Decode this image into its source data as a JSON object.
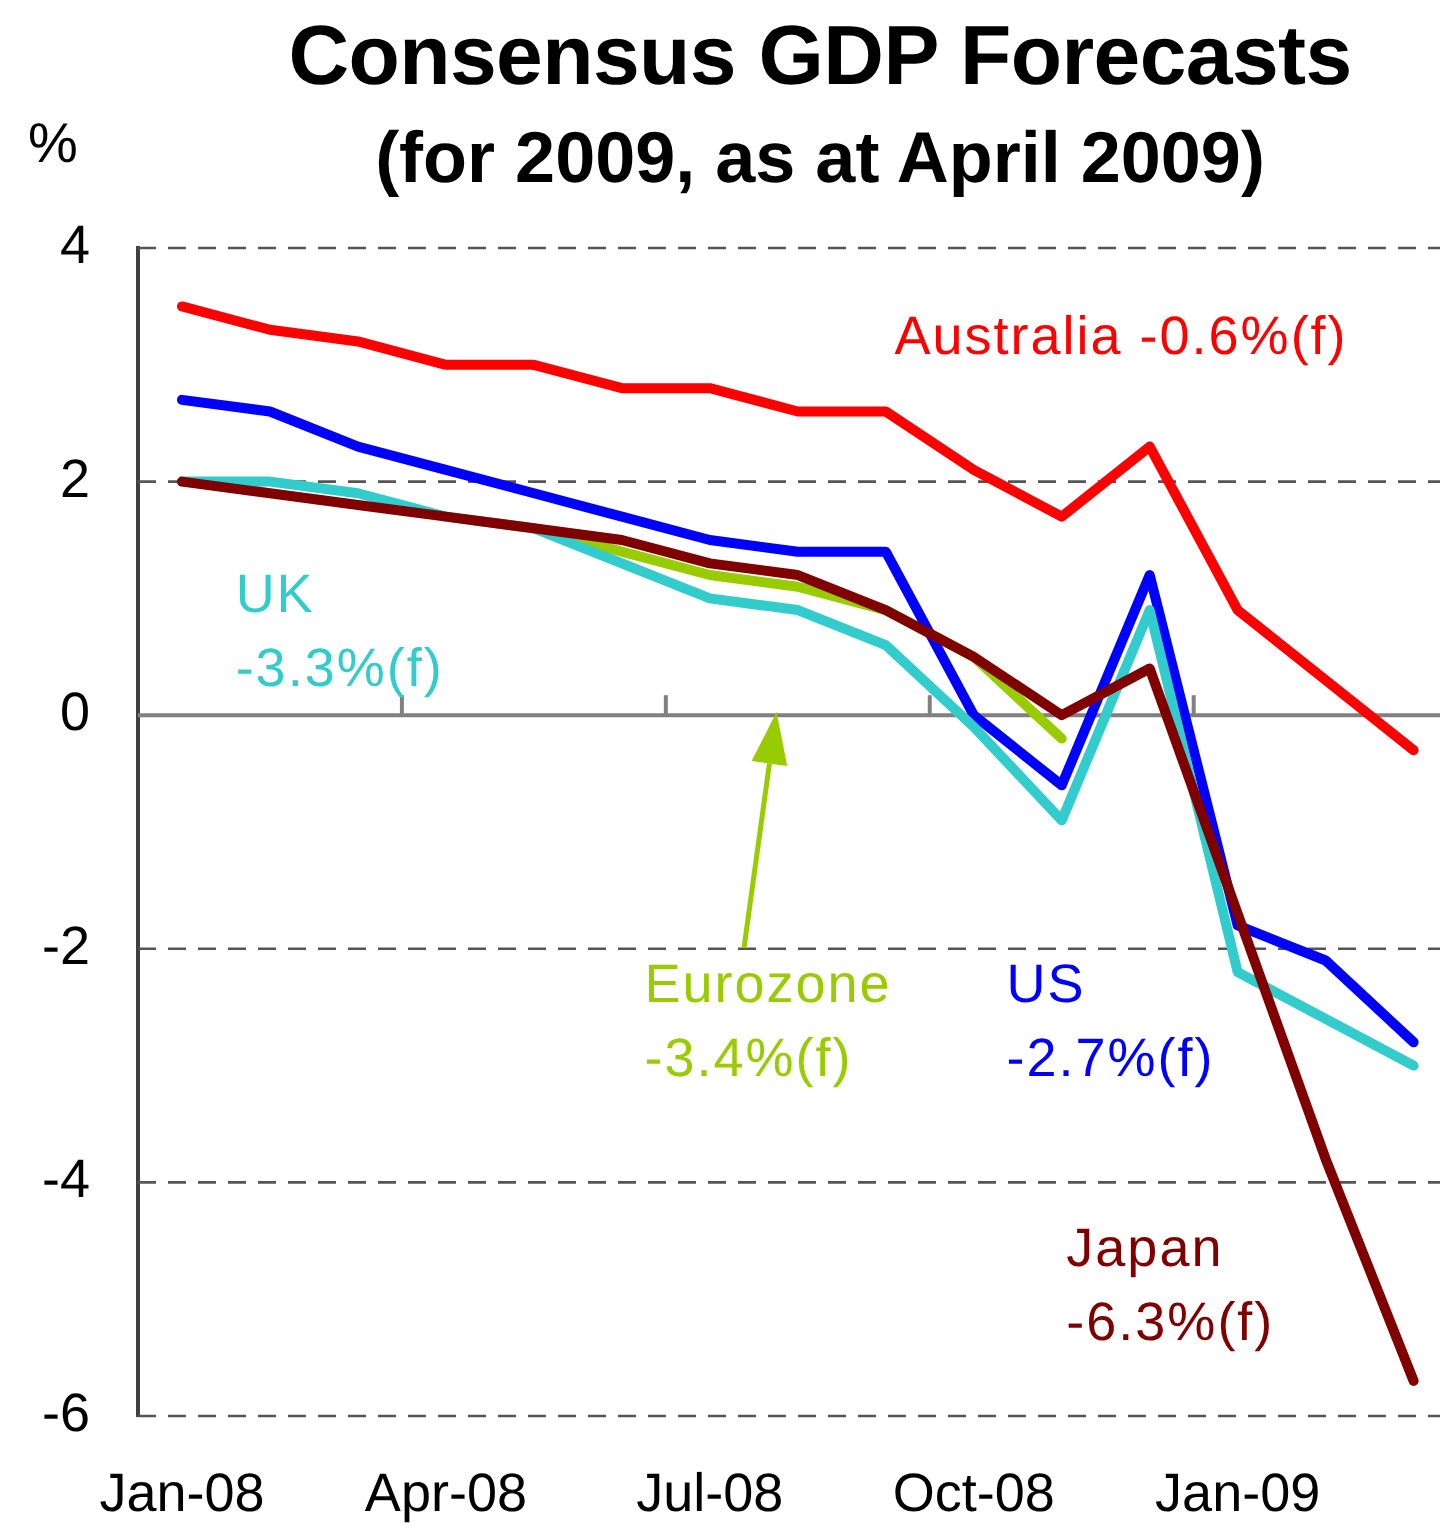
{
  "chart_data": {
    "type": "line",
    "title": "Consensus GDP Forecasts",
    "subtitle": "(for 2009, as at April 2009)",
    "ylabel": "%",
    "categories": [
      "Jan-08",
      null,
      null,
      "Apr-08",
      null,
      null,
      "Jul-08",
      null,
      null,
      "Oct-08",
      null,
      null,
      "Jan-09",
      null,
      null
    ],
    "series": [
      {
        "name": "Japan -6.3%(f)",
        "color": "#800000",
        "values": [
          2.0,
          1.9,
          1.8,
          1.7,
          1.6,
          1.5,
          1.3,
          1.2,
          0.9,
          0.5,
          0.0,
          0.4,
          -1.7,
          -3.8,
          -5.7
        ]
      },
      {
        "name": "UK -3.3%(f)",
        "color": "#33cccc",
        "values": [
          2.0,
          2.0,
          1.9,
          1.7,
          1.6,
          1.3,
          1.0,
          0.9,
          0.6,
          -0.1,
          -0.9,
          0.9,
          -2.2,
          -2.6,
          -3.0
        ]
      },
      {
        "name": "US -2.7%(f)",
        "color": "#0000ff",
        "values": [
          2.7,
          2.6,
          2.3,
          2.1,
          1.9,
          1.7,
          1.5,
          1.4,
          1.4,
          0.0,
          -0.6,
          1.2,
          -1.8,
          -2.1,
          -2.8
        ]
      },
      {
        "name": "Australia -0.6%(f)",
        "color": "#ff0000",
        "values": [
          3.5,
          3.3,
          3.2,
          3.0,
          3.0,
          2.8,
          2.8,
          2.6,
          2.6,
          2.1,
          1.7,
          2.3,
          0.9,
          0.3,
          -0.3
        ]
      },
      {
        "name": "Eurozone -3.4%(f)",
        "color": "#99cc00",
        "values": [
          null,
          null,
          null,
          null,
          1.6,
          1.4,
          1.2,
          1.1,
          0.9,
          0.5,
          -0.2,
          null,
          null,
          null,
          null
        ]
      }
    ],
    "ylim": [
      -6,
      4
    ],
    "yticks": [
      -6,
      -4,
      -2,
      0,
      2,
      4
    ],
    "grid": "y"
  }
}
